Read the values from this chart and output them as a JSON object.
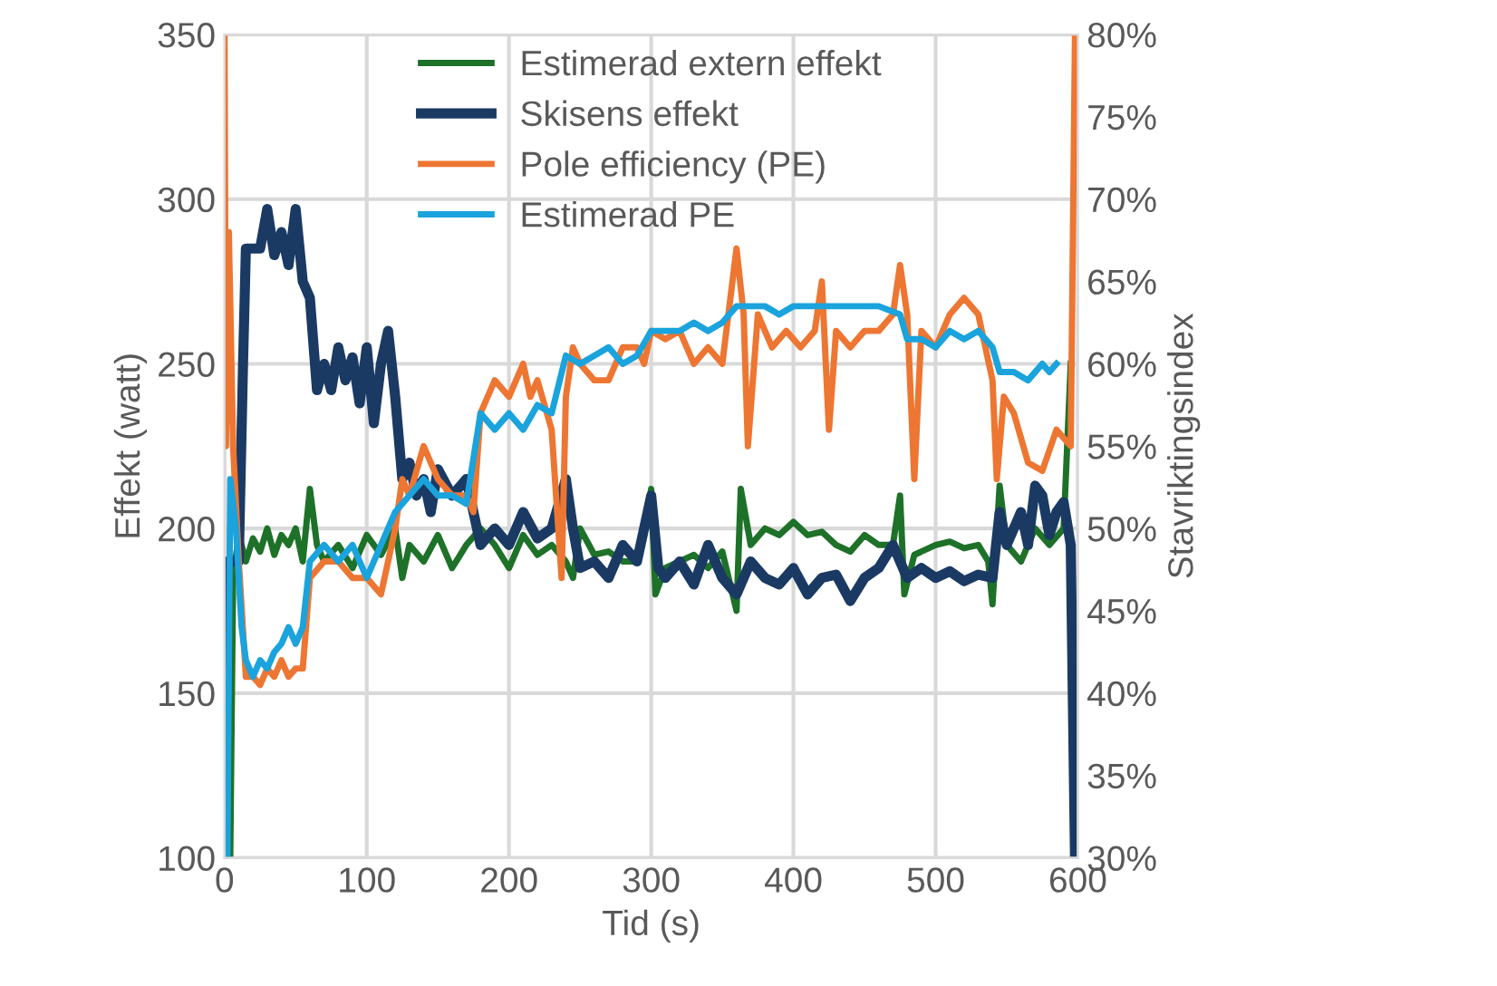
{
  "chart_data": {
    "type": "line",
    "xlabel": "Tid (s)",
    "ylabel": "Effekt (watt)",
    "y2label": "Stavriktingsindex",
    "xlim": [
      0,
      600
    ],
    "xticks": [
      0,
      100,
      200,
      300,
      400,
      500,
      600
    ],
    "ylim": [
      100,
      350
    ],
    "yticks": [
      100,
      150,
      200,
      250,
      300,
      350
    ],
    "y2lim": [
      30,
      80
    ],
    "y2ticks": [
      {
        "value": 30,
        "label": "30%"
      },
      {
        "value": 35,
        "label": "35%"
      },
      {
        "value": 40,
        "label": "40%"
      },
      {
        "value": 45,
        "label": "45%"
      },
      {
        "value": 50,
        "label": "50%"
      },
      {
        "value": 55,
        "label": "55%"
      },
      {
        "value": 60,
        "label": "60%"
      },
      {
        "value": 65,
        "label": "65%"
      },
      {
        "value": 70,
        "label": "70%"
      },
      {
        "value": 75,
        "label": "75%"
      },
      {
        "value": 80,
        "label": "80%"
      }
    ],
    "grid": true,
    "legend": "top",
    "series": [
      {
        "name": "Estimerad extern effekt",
        "color": "#1e7128",
        "x": [
          4,
          6,
          10,
          15,
          20,
          25,
          30,
          35,
          40,
          45,
          50,
          55,
          60,
          65,
          70,
          80,
          90,
          100,
          110,
          120,
          125,
          130,
          140,
          150,
          160,
          170,
          180,
          190,
          200,
          210,
          220,
          230,
          240,
          245,
          250,
          260,
          270,
          280,
          290,
          300,
          303,
          310,
          320,
          330,
          340,
          350,
          360,
          363,
          370,
          380,
          390,
          400,
          410,
          420,
          430,
          440,
          450,
          460,
          470,
          475,
          478,
          485,
          500,
          510,
          520,
          530,
          537,
          540,
          545,
          550,
          560,
          570,
          580,
          590,
          595
        ],
        "values": [
          100,
          185,
          198,
          190,
          197,
          193,
          200,
          192,
          198,
          195,
          200,
          190,
          212,
          195,
          190,
          195,
          188,
          198,
          192,
          200,
          185,
          195,
          190,
          198,
          188,
          195,
          200,
          195,
          188,
          198,
          192,
          195,
          190,
          185,
          200,
          192,
          193,
          190,
          190,
          212,
          180,
          188,
          190,
          192,
          188,
          193,
          175,
          212,
          195,
          200,
          198,
          202,
          198,
          199,
          195,
          193,
          198,
          195,
          195,
          210,
          180,
          192,
          195,
          196,
          194,
          195,
          190,
          177,
          213,
          195,
          190,
          200,
          195,
          200,
          250
        ]
      },
      {
        "name": "Skisens effekt",
        "color": "#1a3a64",
        "x": [
          0,
          2,
          10,
          13,
          15,
          25,
          30,
          35,
          40,
          45,
          50,
          55,
          60,
          65,
          70,
          75,
          80,
          85,
          90,
          95,
          100,
          105,
          110,
          115,
          120,
          125,
          130,
          135,
          140,
          145,
          150,
          160,
          170,
          180,
          190,
          200,
          210,
          220,
          230,
          240,
          245,
          250,
          260,
          270,
          280,
          290,
          300,
          305,
          310,
          320,
          330,
          340,
          350,
          360,
          370,
          380,
          390,
          400,
          410,
          420,
          430,
          440,
          450,
          460,
          470,
          480,
          490,
          500,
          510,
          520,
          530,
          540,
          545,
          550,
          560,
          565,
          570,
          575,
          580,
          585,
          590,
          595,
          598
        ],
        "values": [
          100,
          190,
          190,
          250,
          285,
          285,
          297,
          283,
          290,
          280,
          297,
          275,
          270,
          242,
          250,
          242,
          255,
          245,
          252,
          238,
          255,
          232,
          250,
          260,
          240,
          215,
          220,
          210,
          215,
          205,
          218,
          210,
          215,
          195,
          200,
          195,
          205,
          197,
          200,
          215,
          200,
          188,
          190,
          185,
          195,
          190,
          210,
          188,
          185,
          190,
          183,
          195,
          185,
          180,
          190,
          185,
          183,
          188,
          180,
          185,
          186,
          178,
          185,
          188,
          195,
          185,
          188,
          185,
          187,
          184,
          186,
          185,
          205,
          195,
          205,
          195,
          213,
          210,
          198,
          205,
          208,
          195,
          100
        ]
      },
      {
        "name": "Pole efficiency (PE)",
        "color": "#ed7632",
        "axis": "y2",
        "x": [
          0,
          1,
          3,
          6,
          10,
          15,
          20,
          25,
          30,
          35,
          40,
          45,
          50,
          55,
          60,
          70,
          80,
          90,
          100,
          110,
          120,
          125,
          130,
          140,
          150,
          160,
          170,
          175,
          180,
          190,
          200,
          210,
          215,
          220,
          230,
          237,
          240,
          245,
          250,
          260,
          270,
          280,
          290,
          295,
          300,
          310,
          320,
          330,
          340,
          350,
          360,
          365,
          368,
          375,
          385,
          395,
          405,
          415,
          420,
          425,
          430,
          440,
          450,
          460,
          470,
          475,
          480,
          485,
          490,
          500,
          510,
          520,
          530,
          540,
          543,
          548,
          555,
          565,
          575,
          585,
          595,
          598
        ],
        "values": [
          80,
          55,
          68,
          55,
          48,
          41,
          41,
          40.5,
          41.5,
          41,
          42,
          41,
          41.5,
          41.5,
          47,
          48,
          48,
          47,
          47,
          46,
          50,
          53,
          52,
          55,
          53,
          52,
          52,
          51,
          57,
          59,
          58,
          60,
          58,
          59,
          56,
          47,
          58,
          61,
          60,
          59,
          59,
          61,
          61,
          60,
          62,
          61.5,
          62,
          60,
          61,
          60,
          67,
          63,
          55,
          63,
          61,
          62,
          61,
          62,
          65,
          56,
          62,
          61,
          62,
          62,
          63,
          66,
          63,
          53,
          62,
          61,
          63,
          64,
          63,
          59,
          53,
          58,
          57,
          54,
          53.5,
          56,
          55,
          80
        ]
      },
      {
        "name": "Estimerad PE",
        "color": "#1aa3dc",
        "axis": "y2",
        "x": [
          2,
          4,
          8,
          12,
          15,
          20,
          25,
          30,
          35,
          40,
          45,
          50,
          55,
          60,
          70,
          80,
          90,
          95,
          100,
          110,
          120,
          130,
          140,
          150,
          160,
          170,
          180,
          190,
          200,
          210,
          220,
          230,
          240,
          250,
          260,
          270,
          280,
          290,
          300,
          310,
          320,
          330,
          340,
          350,
          360,
          370,
          380,
          390,
          400,
          420,
          440,
          460,
          475,
          480,
          490,
          500,
          510,
          520,
          530,
          540,
          545,
          555,
          565,
          575,
          580,
          585
        ],
        "values": [
          30,
          53,
          50,
          44,
          42,
          41,
          42,
          41.5,
          42.5,
          43,
          44,
          43,
          44,
          48,
          49,
          48,
          49,
          48,
          47,
          49,
          51,
          52,
          53,
          52,
          52,
          51.5,
          57,
          56,
          57,
          56,
          57.5,
          57,
          60.5,
          60,
          60.5,
          61,
          60,
          60.5,
          62,
          62,
          62,
          62.5,
          62,
          62.5,
          63.5,
          63.5,
          63.5,
          63,
          63.5,
          63.5,
          63.5,
          63.5,
          63,
          61.5,
          61.5,
          61,
          62,
          61.5,
          62,
          61,
          59.5,
          59.5,
          59,
          60,
          59.5,
          60
        ]
      }
    ]
  }
}
